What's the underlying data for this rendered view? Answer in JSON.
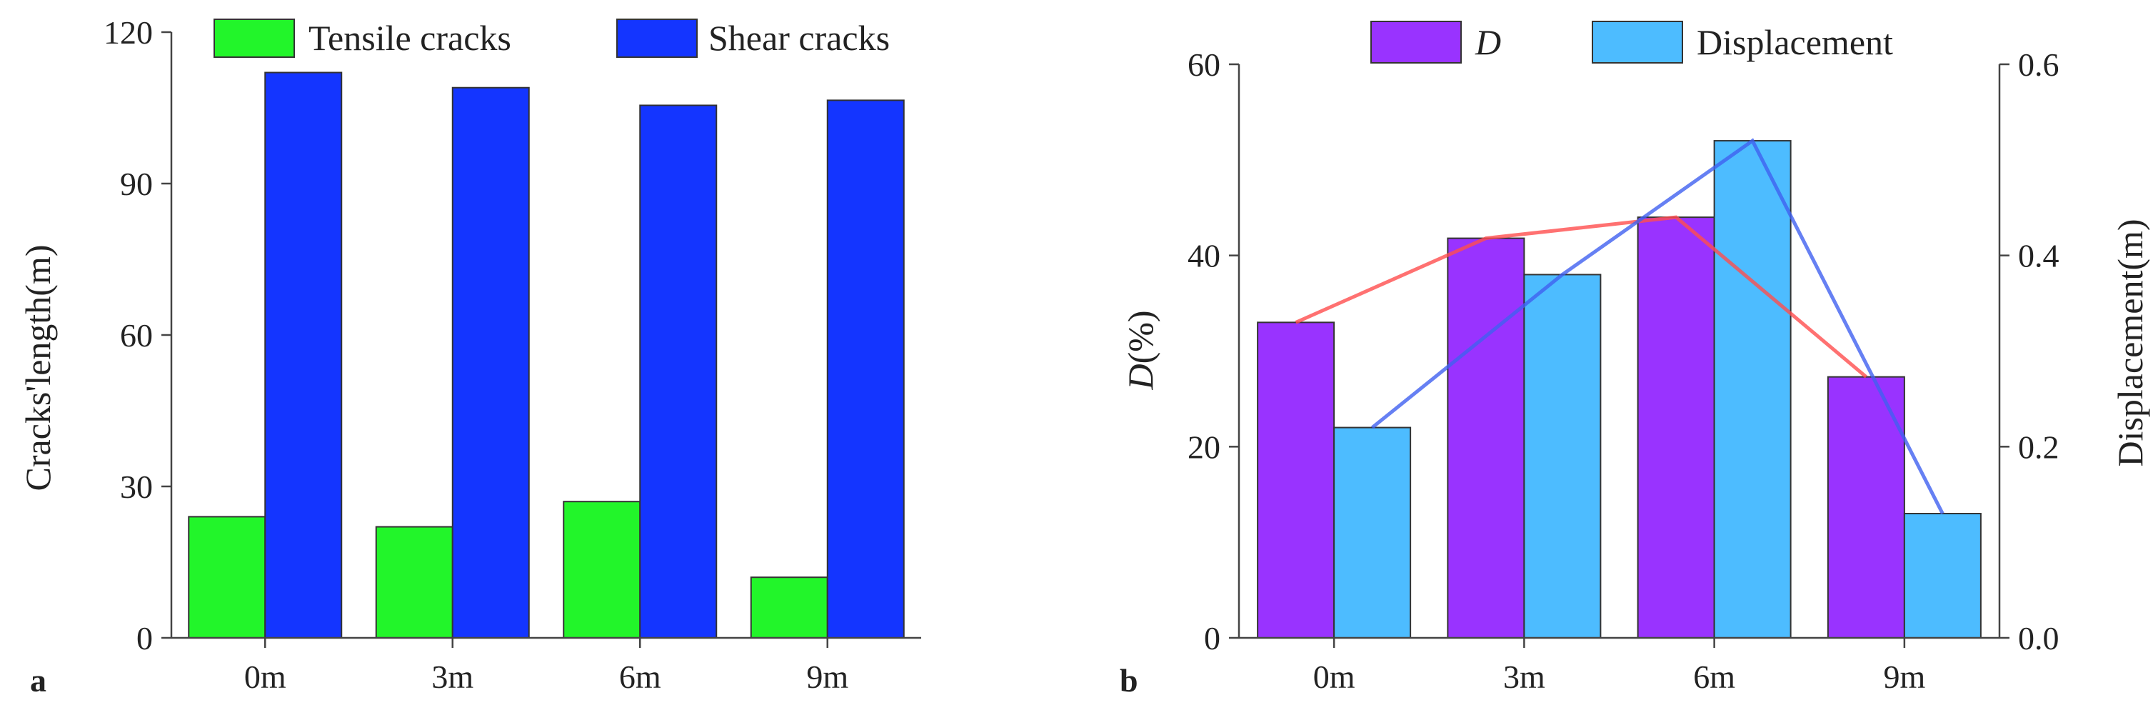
{
  "chart_data": [
    {
      "panel_label": "a",
      "type": "bar",
      "categories": [
        "0m",
        "3m",
        "6m",
        "9m"
      ],
      "series": [
        {
          "name": "Tensile cracks",
          "color": "#22f52a",
          "values": [
            24,
            22,
            27,
            12
          ]
        },
        {
          "name": "Shear cracks",
          "color": "#1435ff",
          "values": [
            112,
            109,
            105.5,
            106.5
          ]
        }
      ],
      "ylabel": "Cracks'length(m)",
      "ylim": [
        0,
        120
      ],
      "yticks": [
        "0",
        "30",
        "60",
        "90",
        "120"
      ],
      "legend_position": "top"
    },
    {
      "panel_label": "b",
      "type": "bar",
      "categories": [
        "0m",
        "3m",
        "6m",
        "9m"
      ],
      "series": [
        {
          "name": "D",
          "axis": "left",
          "color": "#9933ff",
          "line_color": "#ff4d4d",
          "values": [
            33,
            41.8,
            44,
            27.3
          ]
        },
        {
          "name": "Displacement",
          "axis": "right",
          "color": "#4dbcff",
          "line_color": "#4060f0",
          "values": [
            0.22,
            0.38,
            0.52,
            0.13
          ]
        }
      ],
      "ylabel_main": "D",
      "ylabel_unit": "(%)",
      "ylim": [
        0,
        60
      ],
      "yticks": [
        "0",
        "20",
        "40",
        "60"
      ],
      "y2label": "Displacement(m)",
      "y2lim": [
        0,
        0.6
      ],
      "y2ticks": [
        "0.0",
        "0.2",
        "0.4",
        "0.6"
      ],
      "legend_position": "top"
    }
  ]
}
